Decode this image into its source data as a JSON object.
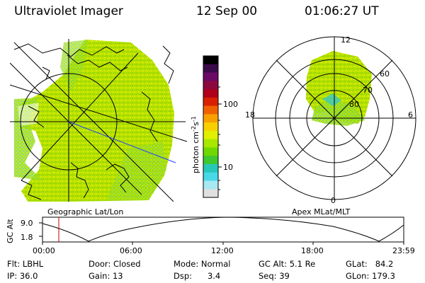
{
  "header": {
    "instrument": "Ultraviolet Imager",
    "date": "12 Sep 00",
    "time": "01:06:27 UT"
  },
  "left_panel": {
    "caption": "Geographic Lat/Lon"
  },
  "right_panel": {
    "caption": "Apex MLat/MLT",
    "mlt_labels": {
      "top": "12",
      "left": "18",
      "right": "6",
      "bottom": "0"
    },
    "lat_labels": [
      "60",
      "70",
      "80"
    ]
  },
  "colorbar": {
    "unit_label_main": "photon cm",
    "unit_label_exp1": "-2",
    "unit_label_mid": "s",
    "unit_label_exp2": "-1",
    "ticks": [
      "100",
      "10"
    ],
    "colors": [
      "#000000",
      "#3a0a4a",
      "#6a0a66",
      "#8a0a40",
      "#b0001a",
      "#d82000",
      "#f06000",
      "#f8a000",
      "#f8d000",
      "#e0f000",
      "#a8e800",
      "#70d800",
      "#40c830",
      "#28c8b8",
      "#48d8e8",
      "#a8e8f0",
      "#e0e0e0"
    ]
  },
  "timeline": {
    "axis_label": "GC Alt",
    "y_ticks": [
      "9.0",
      "1.8"
    ],
    "x_ticks": [
      "00:00",
      "06:00",
      "12:00",
      "18:00",
      "23:59"
    ],
    "current_time_fraction": 0.045
  },
  "info": {
    "filter": "Flt: LBHL",
    "ip": "IP: 36.0",
    "door": "Door: Closed",
    "gain": "Gain: 13",
    "mode": "Mode: Normal",
    "dsp": "Dsp:      3.4",
    "gc_alt": "GC Alt: 5.1 Re",
    "seq": "Seq: 39",
    "glat": "GLat:   84.2",
    "glon": "GLon: 179.3"
  }
}
